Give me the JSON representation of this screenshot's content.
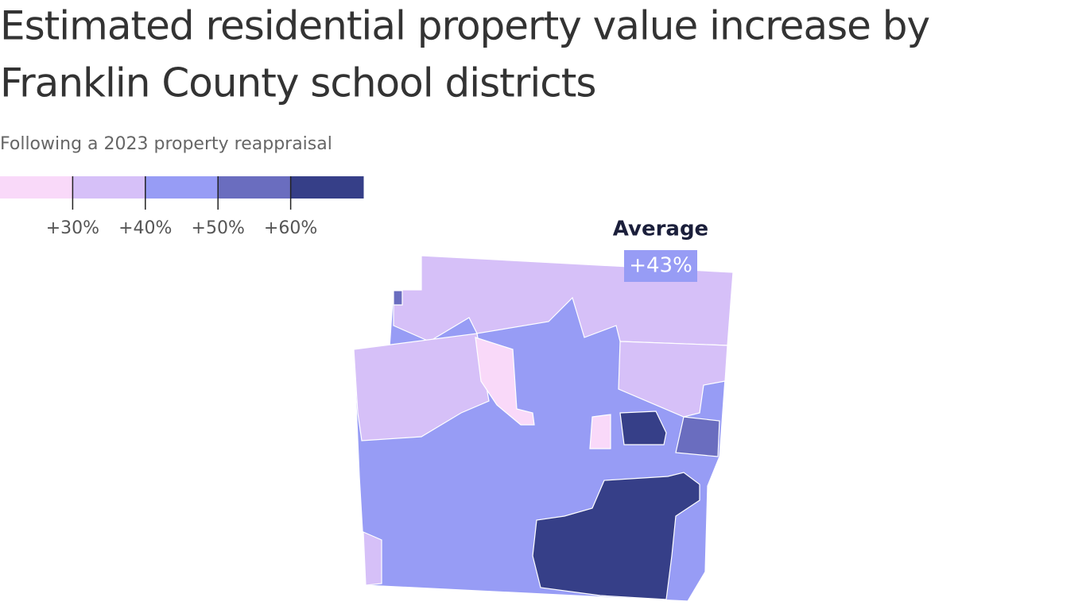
{
  "title_lines": [
    "Estimated residential property value increase by",
    "Franklin County school districts"
  ],
  "subtitle": "Following a 2023 property reappraisal",
  "legend": {
    "colors": [
      "#f9d9f9",
      "#d6c0f8",
      "#979cf5",
      "#6a6dbf",
      "#363f88"
    ],
    "ticks": [
      {
        "value": 30,
        "label": "+30%"
      },
      {
        "value": 40,
        "label": "+40%"
      },
      {
        "value": 50,
        "label": "+50%"
      },
      {
        "value": 60,
        "label": "+60%"
      }
    ]
  },
  "average": {
    "label": "Average",
    "value": 43,
    "value_label": "+43%"
  }
}
